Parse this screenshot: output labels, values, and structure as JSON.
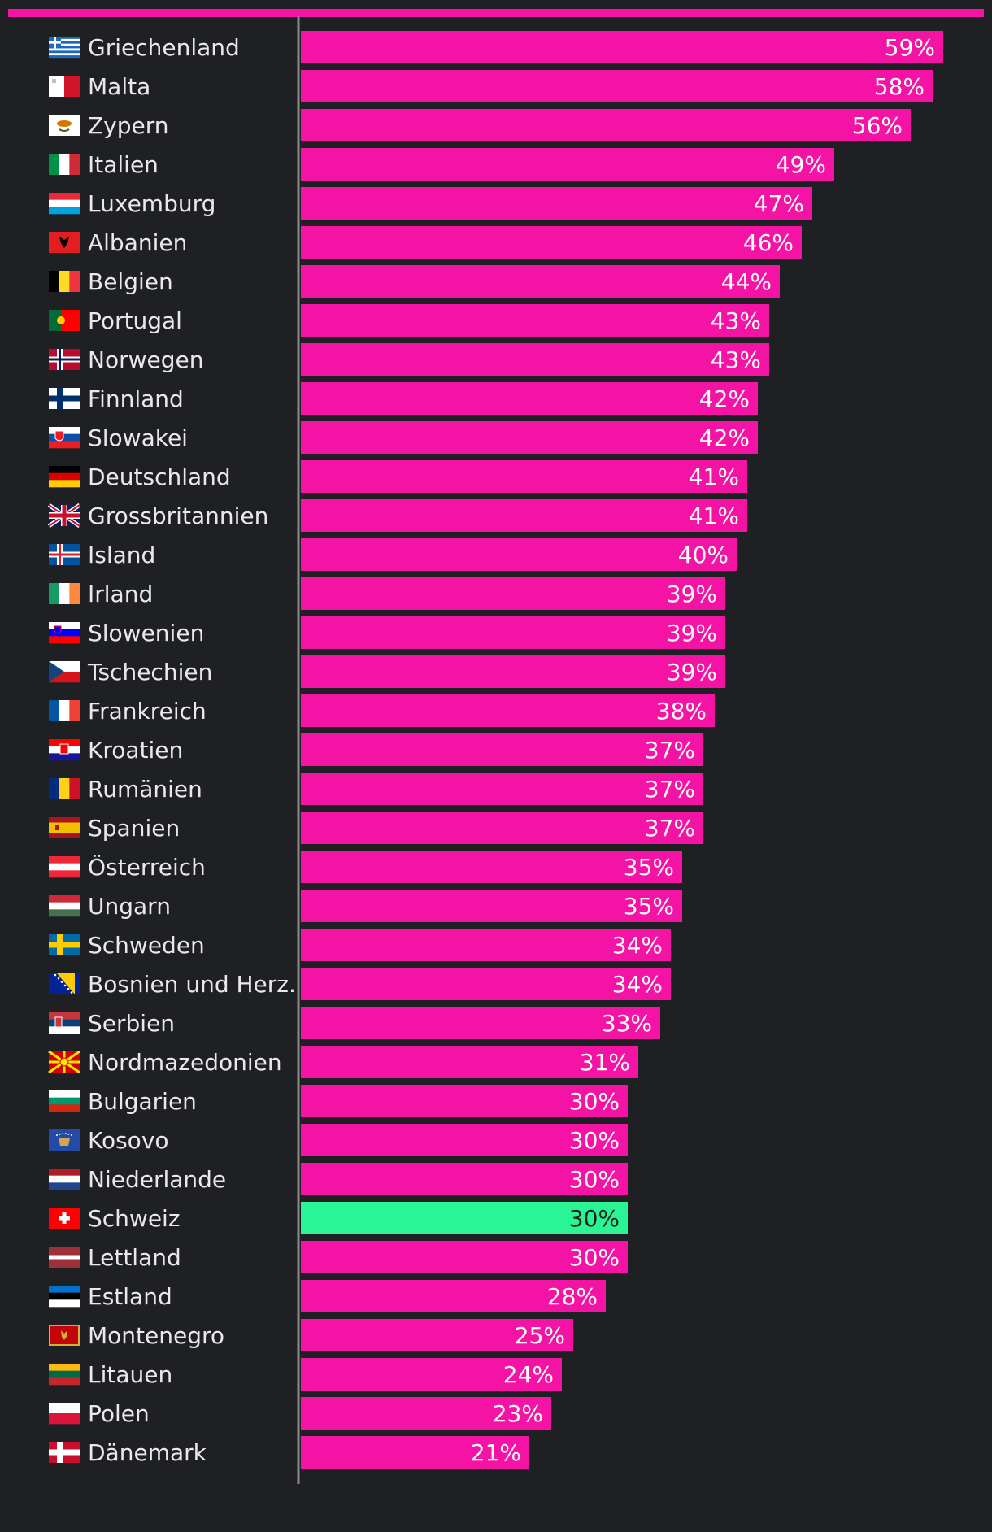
{
  "colors": {
    "background": "#1f2023",
    "bar": "#f513a5",
    "highlight": "#29f595",
    "axis": "#8a8a8a",
    "label": "#e9e9ea"
  },
  "chart_data": {
    "type": "bar",
    "orientation": "horizontal",
    "xlim": [
      0,
      59
    ],
    "highlight": "Schweiz",
    "categories": [
      "Griechenland",
      "Malta",
      "Zypern",
      "Italien",
      "Luxemburg",
      "Albanien",
      "Belgien",
      "Portugal",
      "Norwegen",
      "Finnland",
      "Slowakei",
      "Deutschland",
      "Grossbritannien",
      "Island",
      "Irland",
      "Slowenien",
      "Tschechien",
      "Frankreich",
      "Kroatien",
      "Rumänien",
      "Spanien",
      "Österreich",
      "Ungarn",
      "Schweden",
      "Bosnien und Herz.",
      "Serbien",
      "Nordmazedonien",
      "Bulgarien",
      "Kosovo",
      "Niederlande",
      "Schweiz",
      "Lettland",
      "Estland",
      "Montenegro",
      "Litauen",
      "Polen",
      "Dänemark"
    ],
    "values": [
      59,
      58,
      56,
      49,
      47,
      46,
      44,
      43,
      43,
      42,
      42,
      41,
      41,
      40,
      39,
      39,
      39,
      38,
      37,
      37,
      37,
      35,
      35,
      34,
      34,
      33,
      31,
      30,
      30,
      30,
      30,
      30,
      28,
      25,
      24,
      23,
      21
    ],
    "value_labels": [
      "59%",
      "58%",
      "56%",
      "49%",
      "47%",
      "46%",
      "44%",
      "43%",
      "43%",
      "42%",
      "42%",
      "41%",
      "41%",
      "40%",
      "39%",
      "39%",
      "39%",
      "38%",
      "37%",
      "37%",
      "37%",
      "35%",
      "35%",
      "34%",
      "34%",
      "33%",
      "31%",
      "30%",
      "30%",
      "30%",
      "30%",
      "30%",
      "28%",
      "25%",
      "24%",
      "23%",
      "21%"
    ],
    "flags": [
      "greece-flag",
      "malta-flag",
      "cyprus-flag",
      "italy-flag",
      "luxembourg-flag",
      "albania-flag",
      "belgium-flag",
      "portugal-flag",
      "norway-flag",
      "finland-flag",
      "slovakia-flag",
      "germany-flag",
      "uk-flag",
      "iceland-flag",
      "ireland-flag",
      "slovenia-flag",
      "czechia-flag",
      "france-flag",
      "croatia-flag",
      "romania-flag",
      "spain-flag",
      "austria-flag",
      "hungary-flag",
      "sweden-flag",
      "bosnia-flag",
      "serbia-flag",
      "north-macedonia-flag",
      "bulgaria-flag",
      "kosovo-flag",
      "netherlands-flag",
      "switzerland-flag",
      "latvia-flag",
      "estonia-flag",
      "montenegro-flag",
      "lithuania-flag",
      "poland-flag",
      "denmark-flag"
    ]
  }
}
